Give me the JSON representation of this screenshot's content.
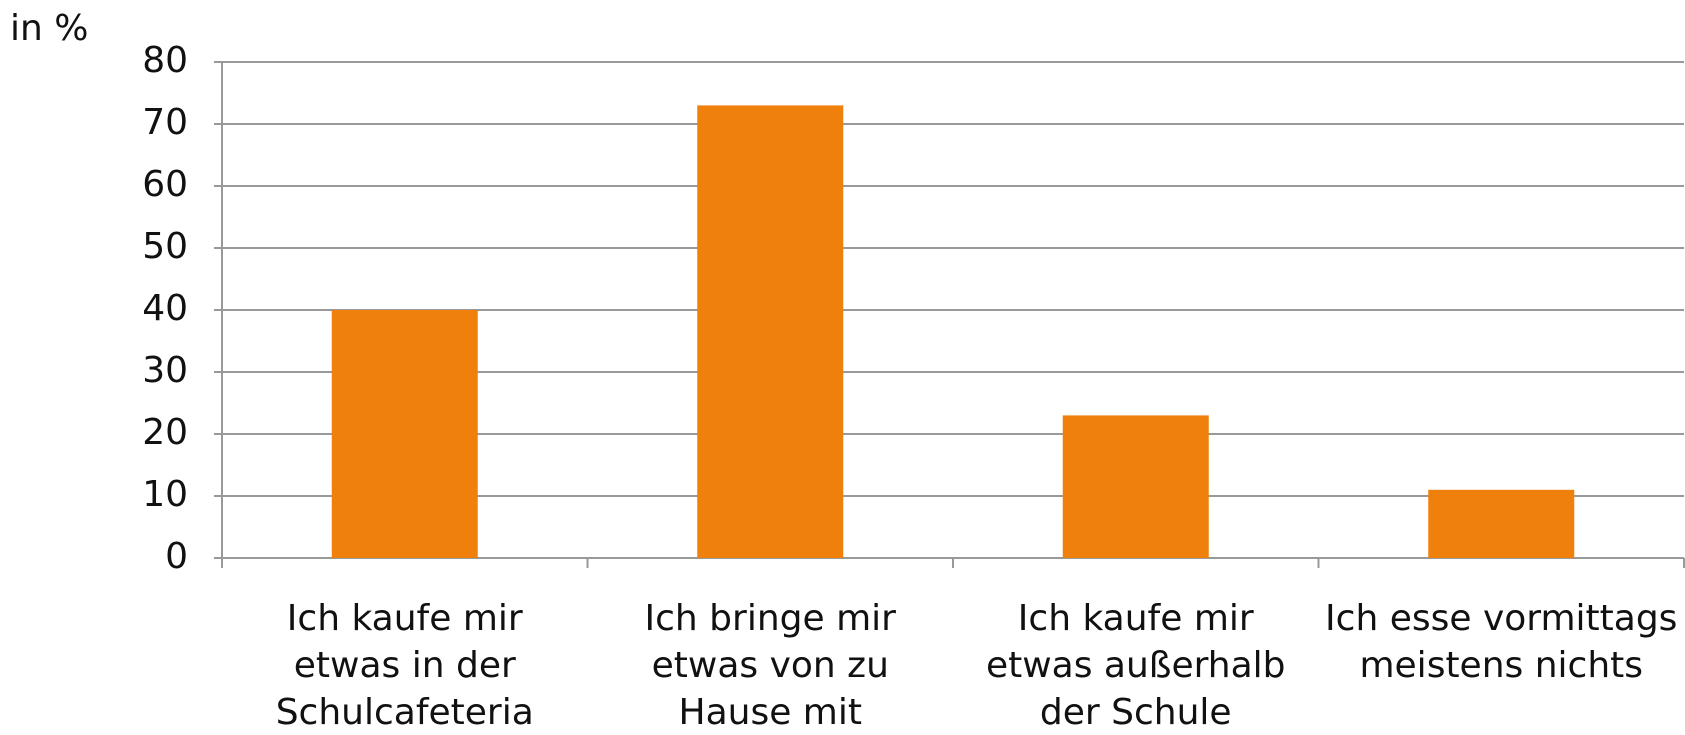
{
  "chart_data": {
    "type": "bar",
    "y_label": "in %",
    "categories": [
      [
        "Ich kaufe mir",
        "etwas in der",
        "Schulcafeteria"
      ],
      [
        "Ich bringe mir",
        "etwas von zu",
        "Hause mit"
      ],
      [
        "Ich kaufe mir",
        "etwas außerhalb",
        "der Schule"
      ],
      [
        "Ich esse vormittags",
        "meistens nichts"
      ]
    ],
    "values": [
      40,
      73,
      23,
      11
    ],
    "color": "#f0800c",
    "ylim": [
      0,
      80
    ],
    "yticks": [
      0,
      10,
      20,
      30,
      40,
      50,
      60,
      70,
      80
    ],
    "grid": true
  }
}
